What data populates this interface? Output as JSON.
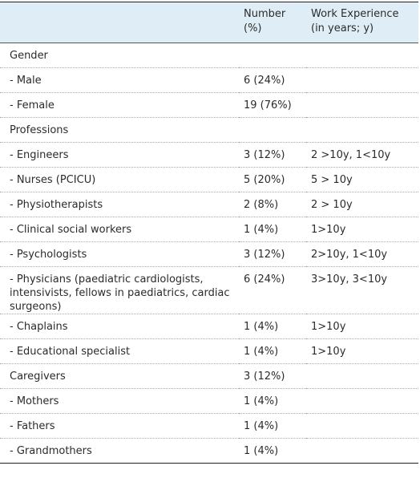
{
  "table": {
    "header": [
      "Number (%)",
      "Work Experience (in years; y)"
    ],
    "rows": [
      {
        "label": "Gender"
      },
      {
        "label": "- Male",
        "number": "6 (24%)"
      },
      {
        "label": "- Female",
        "number": "19 (76%)"
      },
      {
        "label": "Professions"
      },
      {
        "label": "- Engineers",
        "number": "3 (12%)",
        "experience": "2 >10y, 1<10y"
      },
      {
        "label": "- Nurses (PCICU)",
        "number": "5 (20%)",
        "experience": "5 > 10y"
      },
      {
        "label": "- Physiotherapists",
        "number": "2 (8%)",
        "experience": "2 > 10y"
      },
      {
        "label": "- Clinical social workers",
        "number": "1 (4%)",
        "experience": "1>10y"
      },
      {
        "label": "- Psychologists",
        "number": "3 (12%)",
        "experience": "2>10y, 1<10y"
      },
      {
        "label": "- Physicians (paediatric cardiologists, intensivists, fellows in paediatrics, cardiac surgeons)",
        "number": "6 (24%)",
        "experience": "3>10y, 3<10y"
      },
      {
        "label": "- Chaplains",
        "number": "1 (4%)",
        "experience": "1>10y"
      },
      {
        "label": "- Educational specialist",
        "number": "1 (4%)",
        "experience": "1>10y"
      },
      {
        "label": "Caregivers",
        "number": "3 (12%)"
      },
      {
        "label": "- Mothers",
        "number": "1 (4%)"
      },
      {
        "label": "- Fathers",
        "number": "1 (4%)"
      },
      {
        "label": "- Grandmothers",
        "number": "1 (4%)"
      }
    ]
  }
}
